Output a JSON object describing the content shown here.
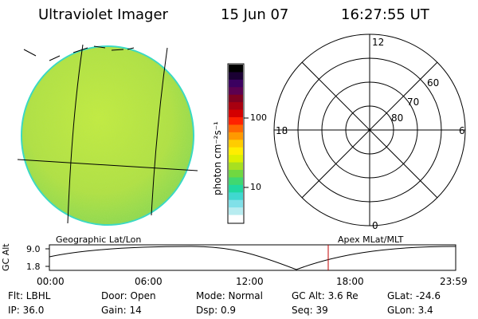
{
  "header": {
    "instrument": "Ultraviolet Imager",
    "date": "15 Jun 07",
    "time": "16:27:55 UT"
  },
  "colorbar": {
    "unit_label": "photon cm⁻²s⁻¹",
    "ticks": [
      "100",
      "10"
    ],
    "colors": [
      "#000000",
      "#1a0033",
      "#3b0060",
      "#5c0050",
      "#800020",
      "#a80010",
      "#d40000",
      "#ff2200",
      "#ff6600",
      "#ff9900",
      "#ffcc00",
      "#ffee00",
      "#ddf000",
      "#a8e020",
      "#70d840",
      "#40d870",
      "#20d8a0",
      "#40d8d0",
      "#80e0e8",
      "#b8ecf0",
      "#ffffff"
    ]
  },
  "polar_plot": {
    "mlt_labels": [
      "12",
      "18",
      "6",
      "0"
    ],
    "lat_labels": [
      "60",
      "70",
      "80"
    ]
  },
  "timeline": {
    "left_label": "Geographic Lat/Lon",
    "right_label": "Apex  MLat/MLT",
    "ylabel": "GC Alt",
    "y_ticks": [
      "9.0",
      "1.8"
    ],
    "x_ticks": [
      "00:00",
      "06:00",
      "12:00",
      "18:00",
      "23:59"
    ],
    "marker_time_hours": 16.47
  },
  "info": {
    "flt": "Flt: LBHL",
    "door": "Door: Open",
    "mode": "Mode:  Normal",
    "gc_alt": "GC Alt:  3.6 Re",
    "glat": "GLat:  -24.6",
    "ip": "IP: 36.0",
    "gain": "Gain:  14",
    "dsp": "Dsp:      0.9",
    "seq": "Seq:  39",
    "glon": "GLon:     3.4"
  }
}
